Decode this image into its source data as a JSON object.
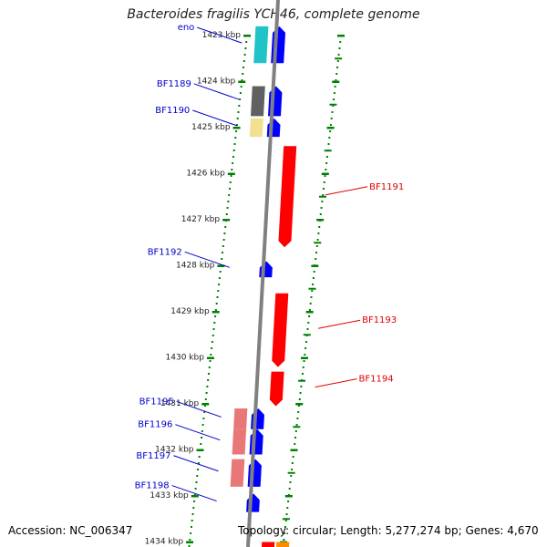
{
  "title": "Bacteroides fragilis YCH46, complete genome",
  "accession_text": "Accession: NC_006347",
  "summary_text": "Topology: circular; Length: 5,277,274 bp; Genes: 4,670",
  "colors": {
    "scale": "#008000",
    "backbone": "#808080",
    "label_forward": "#0000cc",
    "label_reverse": "#dd0000",
    "forward_gene": "#0000ff",
    "reverse_gene": "#ff0000"
  },
  "scale_ticks": [
    {
      "label": "1423 kbp",
      "kbp": 1423
    },
    {
      "label": "1424 kbp",
      "kbp": 1424
    },
    {
      "label": "1425 kbp",
      "kbp": 1425
    },
    {
      "label": "1426 kbp",
      "kbp": 1426
    },
    {
      "label": "1427 kbp",
      "kbp": 1427
    },
    {
      "label": "1428 kbp",
      "kbp": 1428
    },
    {
      "label": "1429 kbp",
      "kbp": 1429
    },
    {
      "label": "1430 kbp",
      "kbp": 1430
    },
    {
      "label": "1431 kbp",
      "kbp": 1431
    },
    {
      "label": "1432 kbp",
      "kbp": 1432
    },
    {
      "label": "1433 kbp",
      "kbp": 1433
    },
    {
      "label": "1434 kbp",
      "kbp": 1434
    }
  ],
  "genes": [
    {
      "id": "eno",
      "label": "eno",
      "strand": "forward",
      "start": 1422.8,
      "end": 1423.6,
      "cog_color": "#20c4c8"
    },
    {
      "id": "bf1189",
      "label": "BF1189",
      "strand": "forward",
      "start": 1424.1,
      "end": 1424.75,
      "cog_color": "#606060"
    },
    {
      "id": "bf1190",
      "label": "BF1190",
      "strand": "forward",
      "start": 1424.8,
      "end": 1425.2,
      "cog_color": "#f0e090"
    },
    {
      "id": "bf1191",
      "label": "BF1191",
      "strand": "reverse",
      "start": 1425.4,
      "end": 1427.6,
      "cog_color": ""
    },
    {
      "id": "bf1192",
      "label": "BF1192",
      "strand": "forward",
      "start": 1427.9,
      "end": 1428.25,
      "cog_color": ""
    },
    {
      "id": "bf1193",
      "label": "BF1193",
      "strand": "reverse",
      "start": 1428.6,
      "end": 1430.2,
      "cog_color": ""
    },
    {
      "id": "bf1194",
      "label": "BF1194",
      "strand": "reverse",
      "start": 1430.3,
      "end": 1431.05,
      "cog_color": ""
    },
    {
      "id": "bf1195",
      "label": "BF1195",
      "strand": "forward",
      "start": 1431.1,
      "end": 1431.55,
      "cog_color": "#e87878"
    },
    {
      "id": "bf1196",
      "label": "BF1196",
      "strand": "forward",
      "start": 1431.55,
      "end": 1432.1,
      "cog_color": "#e87878"
    },
    {
      "id": "bf1197",
      "label": "BF1197",
      "strand": "forward",
      "start": 1432.2,
      "end": 1432.8,
      "cog_color": "#e87878"
    },
    {
      "id": "bf1198",
      "label": "BF1198",
      "strand": "forward",
      "start": 1432.95,
      "end": 1433.35,
      "cog_color": ""
    },
    {
      "id": "bf1199",
      "label": "",
      "strand": "reverse",
      "start": 1434.0,
      "end": 1434.3,
      "cog_color": "#ff8c00"
    }
  ]
}
